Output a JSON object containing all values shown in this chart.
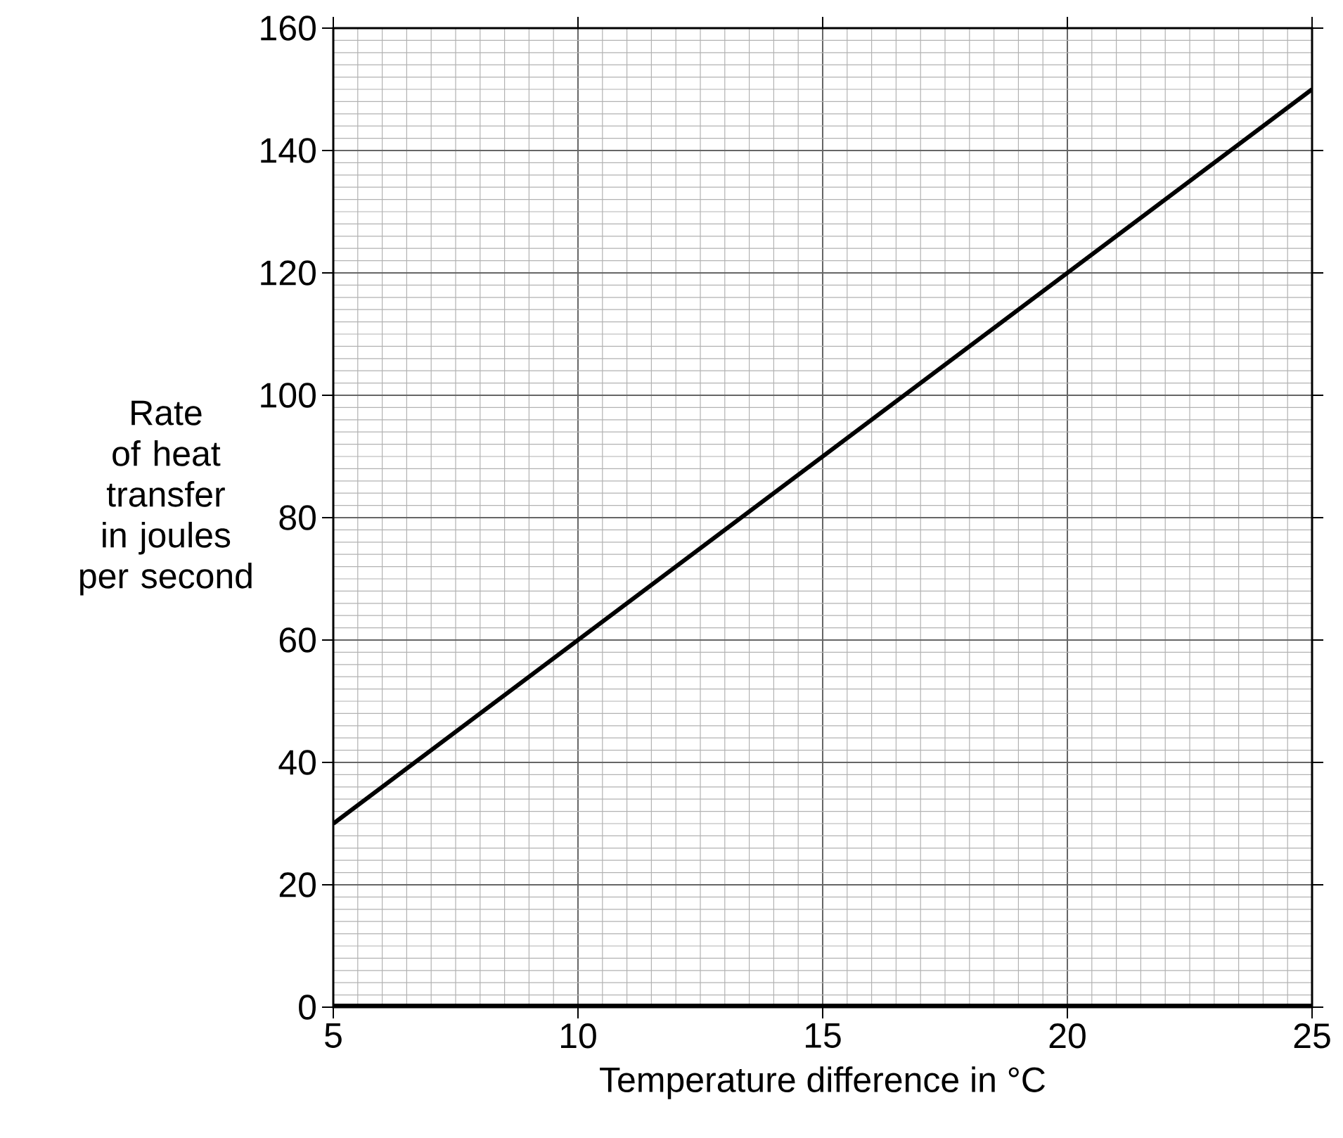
{
  "chart_data": {
    "type": "line",
    "xlabel": "Temperature difference in °C",
    "ylabel": "Rate of heat transfer in joules per second",
    "series": [
      {
        "color": "#000000",
        "x": [
          5,
          25
        ],
        "values": [
          30,
          150
        ]
      }
    ],
    "xlim": [
      5,
      25
    ],
    "ylim": [
      0,
      160
    ],
    "xticks": [
      5,
      10,
      15,
      20,
      25
    ],
    "yticks": [
      0,
      20,
      40,
      60,
      80,
      100,
      120,
      140,
      160
    ],
    "grid": true
  }
}
